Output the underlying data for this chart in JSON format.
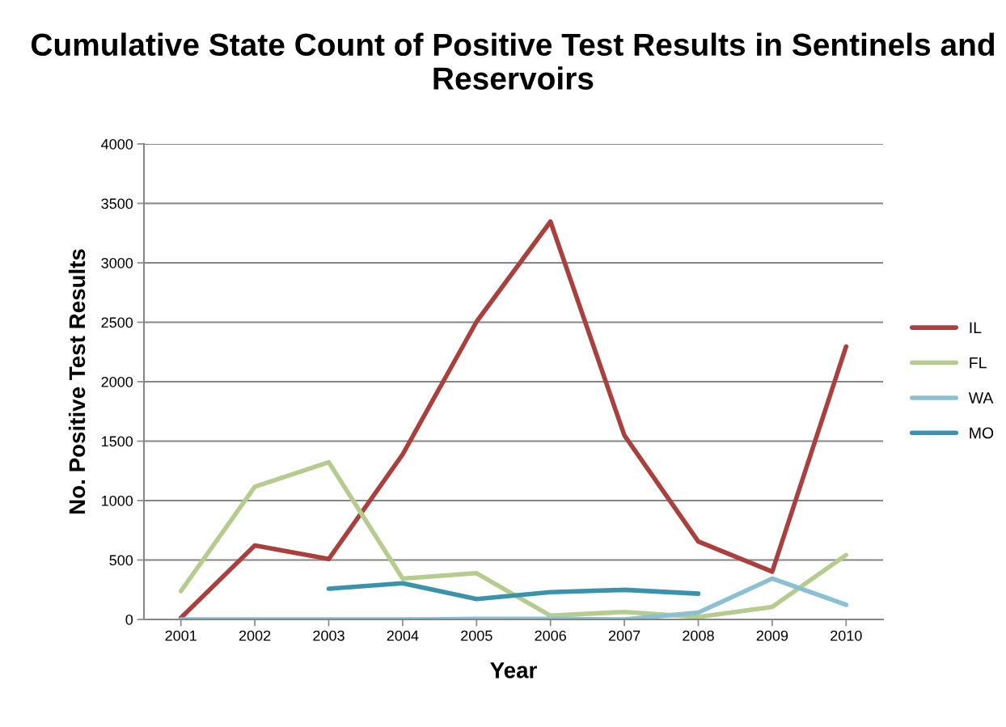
{
  "chart_data": {
    "type": "line",
    "title": "Cumulative State Count of Positive Test Results in Sentinels and Reservoirs",
    "xlabel": "Year",
    "ylabel": "No. Positive Test Results",
    "categories": [
      "2001",
      "2002",
      "2003",
      "2004",
      "2005",
      "2006",
      "2007",
      "2008",
      "2009",
      "2010"
    ],
    "series": [
      {
        "name": "IL",
        "color": "#a9403d",
        "values": [
          13,
          622,
          508,
          1389,
          2505,
          3347,
          1548,
          656,
          402,
          2296
        ]
      },
      {
        "name": "FL",
        "color": "#b5cc8e",
        "values": [
          238,
          1116,
          1323,
          344,
          389,
          32,
          63,
          21,
          106,
          542
        ]
      },
      {
        "name": "WA",
        "color": "#8bc0d3",
        "values": [
          0,
          0,
          0,
          0,
          5,
          5,
          0,
          58,
          344,
          124
        ]
      },
      {
        "name": "MO",
        "color": "#3a93ab",
        "values": [
          null,
          null,
          259,
          304,
          172,
          230,
          249,
          217,
          null,
          null
        ]
      }
    ],
    "ylim": [
      0,
      4000
    ],
    "yticks": [
      0,
      500,
      1000,
      1500,
      2000,
      2500,
      3000,
      3500,
      4000
    ],
    "grid": "y",
    "legend": "right",
    "marker": "none",
    "line_style": "solid"
  }
}
